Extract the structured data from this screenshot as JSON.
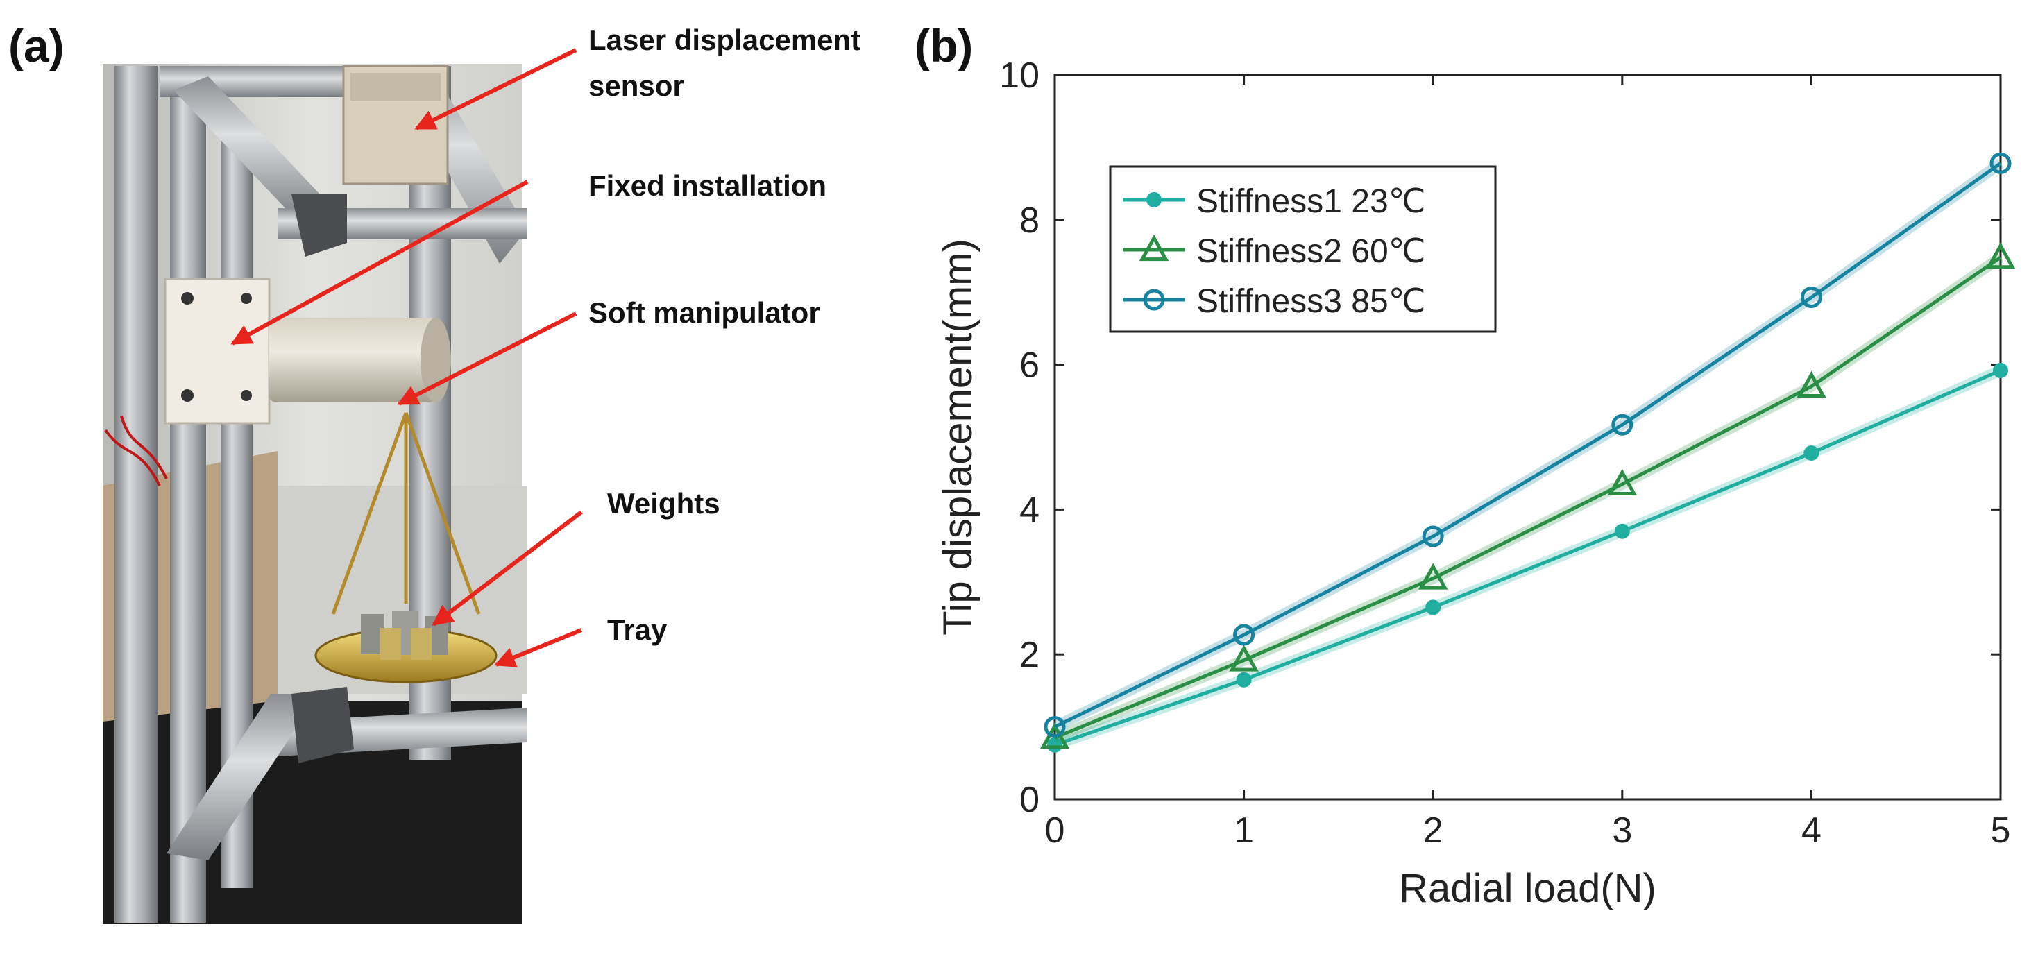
{
  "panel_labels": {
    "a": "(a)",
    "b": "(b)"
  },
  "photo": {
    "annotations": [
      {
        "id": "laser",
        "lines": [
          "Laser displacement",
          "sensor"
        ]
      },
      {
        "id": "fixed",
        "lines": [
          "Fixed installation"
        ]
      },
      {
        "id": "soft",
        "lines": [
          "Soft manipulator"
        ]
      },
      {
        "id": "weights",
        "lines": [
          "Weights"
        ]
      },
      {
        "id": "tray",
        "lines": [
          "Tray"
        ]
      }
    ],
    "arrow_color": "#e8251d"
  },
  "chart_data": {
    "type": "line",
    "title": "",
    "xlabel": "Radial load(N)",
    "ylabel": "Tip displacement(mm)",
    "x": [
      0,
      1,
      2,
      3,
      4,
      5
    ],
    "xlim": [
      0,
      5
    ],
    "ylim": [
      0,
      10
    ],
    "xticks": [
      "0",
      "1",
      "2",
      "3",
      "4",
      "5"
    ],
    "yticks": [
      "0",
      "2",
      "4",
      "6",
      "8",
      "10"
    ],
    "grid": false,
    "legend_position": "top-left",
    "series": [
      {
        "name": "Stiffness1 23℃",
        "marker": "filled-circle",
        "color": "#1fae9f",
        "values": [
          0.75,
          1.65,
          2.65,
          3.7,
          4.78,
          5.92
        ]
      },
      {
        "name": "Stiffness2 60℃",
        "marker": "triangle",
        "color": "#2a8f45",
        "values": [
          0.85,
          1.92,
          3.05,
          4.35,
          5.7,
          7.48
        ]
      },
      {
        "name": "Stiffness3 85℃",
        "marker": "open-circle",
        "color": "#1684a0",
        "values": [
          1.0,
          2.27,
          3.63,
          5.17,
          6.93,
          8.78
        ]
      }
    ]
  }
}
